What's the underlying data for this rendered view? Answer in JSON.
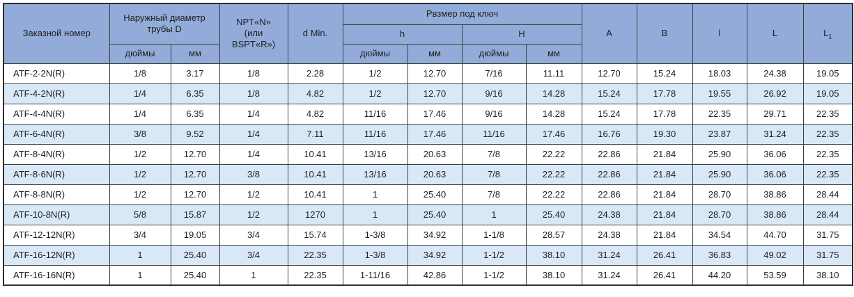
{
  "table": {
    "header": {
      "order_number": "Заказной номер",
      "outer_diameter": "Наружный диаметр трубы D",
      "npt": "NPT«N»\n(или\nBSPT«R»)",
      "d_min": "d Min.",
      "wrench_size": "Рвзмер под ключ",
      "h_small": "h",
      "h_big": "H",
      "inches": "дюймы",
      "mm": "мм",
      "a": "A",
      "b": "B",
      "l_small": "l",
      "l_big": "L",
      "l1_base": "L",
      "l1_sub": "1"
    },
    "rows": [
      [
        "ATF-2-2N(R)",
        "1/8",
        "3.17",
        "1/8",
        "2.28",
        "1/2",
        "12.70",
        "7/16",
        "11.11",
        "12.70",
        "15.24",
        "18.03",
        "24.38",
        "19.05"
      ],
      [
        "ATF-4-2N(R)",
        "1/4",
        "6.35",
        "1/8",
        "4.82",
        "1/2",
        "12.70",
        "9/16",
        "14.28",
        "15.24",
        "17.78",
        "19.55",
        "26.92",
        "19.05"
      ],
      [
        "ATF-4-4N(R)",
        "1/4",
        "6.35",
        "1/4",
        "4.82",
        "11/16",
        "17.46",
        "9/16",
        "14.28",
        "15.24",
        "17.78",
        "22.35",
        "29.71",
        "22.35"
      ],
      [
        "ATF-6-4N(R)",
        "3/8",
        "9.52",
        "1/4",
        "7.11",
        "11/16",
        "17.46",
        "11/16",
        "17.46",
        "16.76",
        "19.30",
        "23.87",
        "31.24",
        "22.35"
      ],
      [
        "ATF-8-4N(R)",
        "1/2",
        "12.70",
        "1/4",
        "10.41",
        "13/16",
        "20.63",
        "7/8",
        "22.22",
        "22.86",
        "21.84",
        "25.90",
        "36.06",
        "22.35"
      ],
      [
        "ATF-8-6N(R)",
        "1/2",
        "12.70",
        "3/8",
        "10.41",
        "13/16",
        "20.63",
        "7/8",
        "22.22",
        "22.86",
        "21.84",
        "25.90",
        "36.06",
        "22.35"
      ],
      [
        "ATF-8-8N(R)",
        "1/2",
        "12.70",
        "1/2",
        "10.41",
        "1",
        "25.40",
        "7/8",
        "22.22",
        "22.86",
        "21.84",
        "28.70",
        "38.86",
        "28.44"
      ],
      [
        "ATF-10-8N(R)",
        "5/8",
        "15.87",
        "1/2",
        "1270",
        "1",
        "25.40",
        "1",
        "25.40",
        "24.38",
        "21.84",
        "28.70",
        "38.86",
        "28.44"
      ],
      [
        "ATF-12-12N(R)",
        "3/4",
        "19.05",
        "3/4",
        "15.74",
        "1-3/8",
        "34.92",
        "1-1/8",
        "28.57",
        "24.38",
        "21.84",
        "34.54",
        "44.70",
        "31.75"
      ],
      [
        "ATF-16-12N(R)",
        "1",
        "25.40",
        "3/4",
        "22.35",
        "1-3/8",
        "34.92",
        "1-1/2",
        "38.10",
        "31.24",
        "26.41",
        "36.83",
        "49.02",
        "31.75"
      ],
      [
        "ATF-16-16N(R)",
        "1",
        "25.40",
        "1",
        "22.35",
        "1-11/16",
        "42.86",
        "1-1/2",
        "38.10",
        "31.24",
        "26.41",
        "44.20",
        "53.59",
        "38.10"
      ]
    ]
  },
  "colors": {
    "header_bg": "#92abd8",
    "stripe_bg": "#d9e8f7",
    "row_bg": "#ffffff",
    "border": "#3f3f3f",
    "text": "#1f1f1f"
  }
}
